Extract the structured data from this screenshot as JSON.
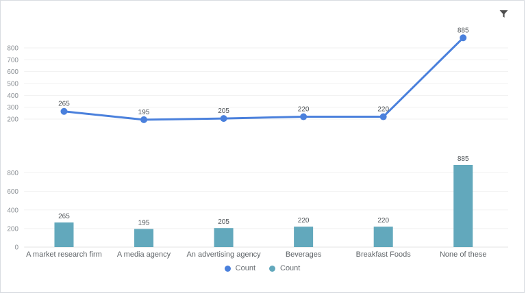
{
  "window": {
    "type": "chart-dashboard-card"
  },
  "toolbar": {
    "filter_icon": "funnel-filter"
  },
  "colors": {
    "line_series": "#4a80dc",
    "bar_series": "#62a8bc",
    "grid": "#f1f1f1",
    "axis_baseline": "#e3e3e3",
    "tick_text": "#8a8f94",
    "value_text": "#4d5256",
    "category_text": "#5f6468",
    "icon": "#4d4d4d",
    "card_border": "#d9dce1"
  },
  "categories": [
    "A market research firm",
    "A media agency",
    "An advertising agency",
    "Beverages",
    "Breakfast Foods",
    "None of these"
  ],
  "chart_data": [
    {
      "type": "line",
      "name": "Count",
      "categories": [
        "A market research firm",
        "A media agency",
        "An advertising agency",
        "Beverages",
        "Breakfast Foods",
        "None of these"
      ],
      "values": [
        265,
        195,
        205,
        220,
        220,
        885
      ],
      "yticks": [
        200,
        300,
        400,
        500,
        600,
        700,
        800
      ],
      "ylim": [
        200,
        900
      ],
      "grid": true,
      "point_labels": [
        265,
        195,
        205,
        220,
        220,
        885
      ],
      "color": "#4a80dc",
      "legend_position": "bottom"
    },
    {
      "type": "bar",
      "name": "Count",
      "categories": [
        "A market research firm",
        "A media agency",
        "An advertising agency",
        "Beverages",
        "Breakfast Foods",
        "None of these"
      ],
      "values": [
        265,
        195,
        205,
        220,
        220,
        885
      ],
      "yticks": [
        0,
        200,
        400,
        600,
        800
      ],
      "ylim": [
        0,
        900
      ],
      "grid": true,
      "bar_labels": [
        265,
        195,
        205,
        220,
        220,
        885
      ],
      "color": "#62a8bc",
      "legend_position": "bottom"
    }
  ],
  "legend": {
    "position": "bottom",
    "items": [
      {
        "label": "Count",
        "color": "#4a80dc",
        "shape": "circle",
        "series": "line"
      },
      {
        "label": "Count",
        "color": "#62a8bc",
        "shape": "circle",
        "series": "bar"
      }
    ]
  }
}
